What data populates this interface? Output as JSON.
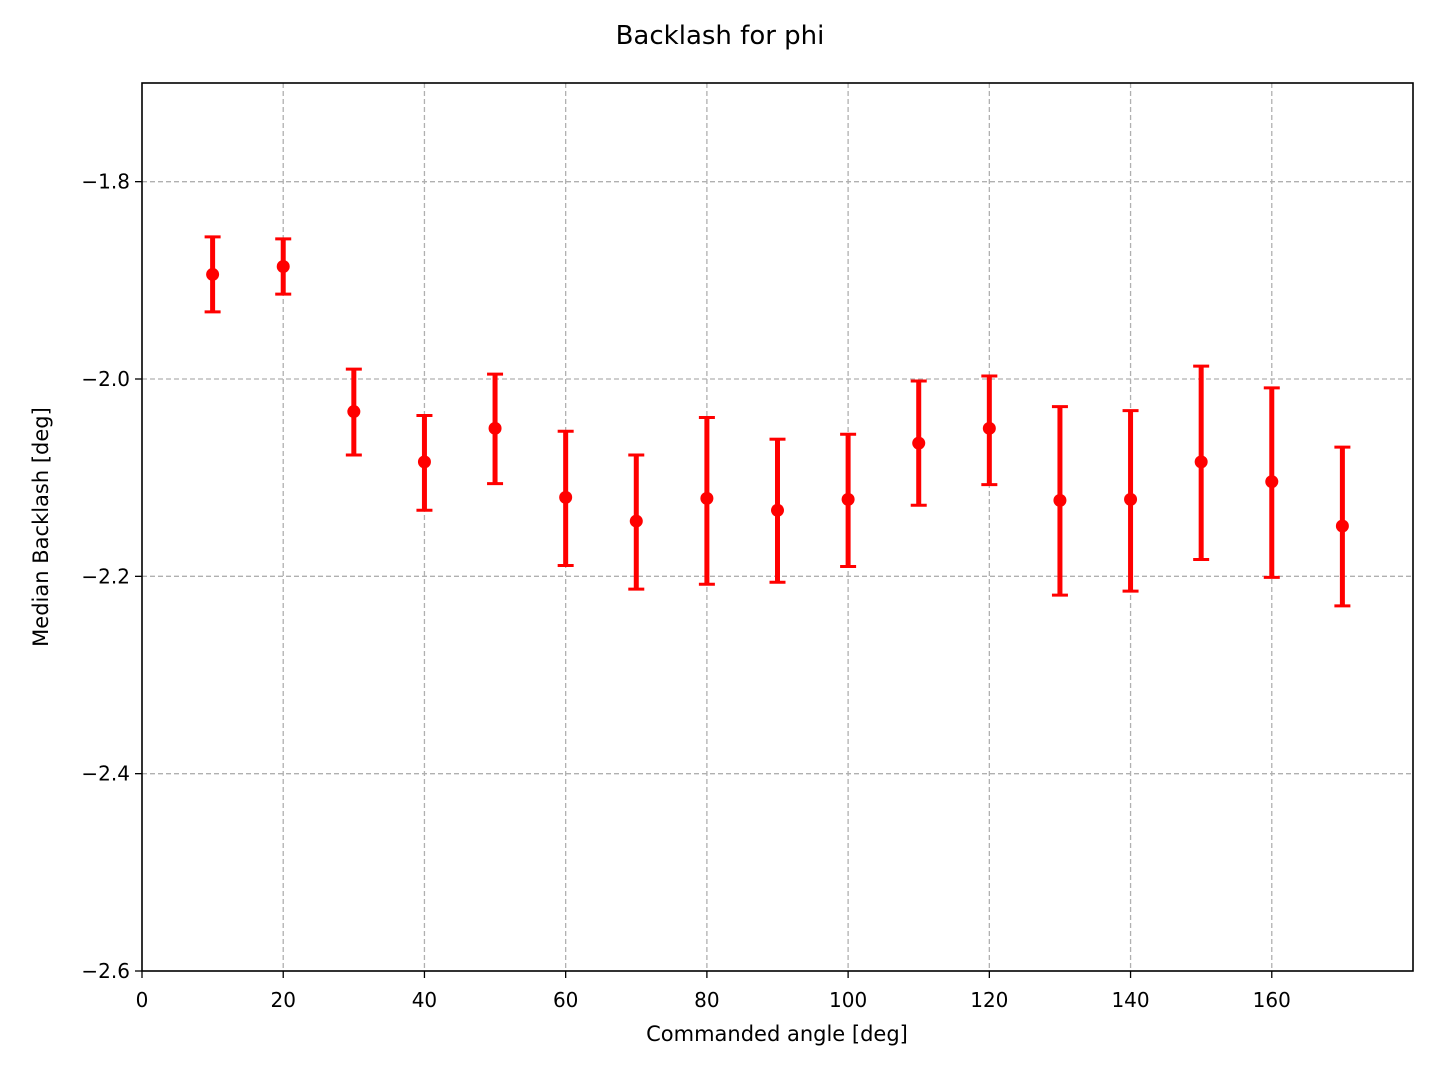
{
  "chart_data": {
    "type": "scatter",
    "title": "Backlash for phi",
    "xlabel": "Commanded angle [deg]",
    "ylabel": "Median Backlash [deg]",
    "xlim": [
      0,
      180
    ],
    "ylim": [
      -2.6,
      -1.7
    ],
    "xticks": [
      0,
      20,
      40,
      60,
      80,
      100,
      120,
      140,
      160
    ],
    "xtick_labels": [
      "0",
      "20",
      "40",
      "60",
      "80",
      "100",
      "120",
      "140",
      "160"
    ],
    "yticks": [
      -1.8,
      -2.0,
      -2.2,
      -2.4,
      -2.6
    ],
    "ytick_labels": [
      "−1.8",
      "−2.0",
      "−2.2",
      "−2.4",
      "−2.6"
    ],
    "grid": true,
    "grid_style": "dashed",
    "error_bars": true,
    "color": "#ff0000",
    "series": [
      {
        "x": [
          10,
          20,
          30,
          40,
          50,
          60,
          70,
          80,
          90,
          100,
          110,
          120,
          130,
          140,
          150,
          160,
          170
        ],
        "y": [
          -1.894,
          -1.886,
          -2.033,
          -2.084,
          -2.05,
          -2.12,
          -2.144,
          -2.121,
          -2.133,
          -2.122,
          -2.065,
          -2.05,
          -2.123,
          -2.122,
          -2.084,
          -2.104,
          -2.149
        ],
        "err_low": [
          0.038,
          0.028,
          0.044,
          0.049,
          0.056,
          0.069,
          0.069,
          0.087,
          0.073,
          0.068,
          0.063,
          0.057,
          0.096,
          0.093,
          0.099,
          0.097,
          0.081
        ],
        "err_high": [
          0.038,
          0.028,
          0.043,
          0.047,
          0.055,
          0.067,
          0.067,
          0.082,
          0.072,
          0.066,
          0.063,
          0.053,
          0.095,
          0.09,
          0.097,
          0.095,
          0.08
        ]
      }
    ]
  }
}
